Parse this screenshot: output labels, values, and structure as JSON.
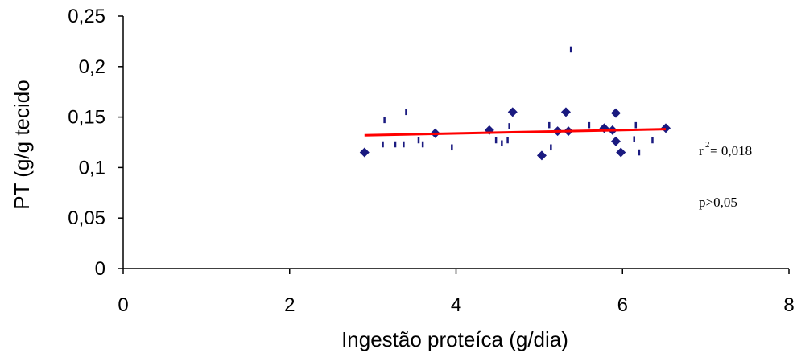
{
  "chart_data": {
    "type": "scatter",
    "title": "",
    "xlabel": "Ingestão proteíca (g/dia)",
    "ylabel": "PT (g/g tecido",
    "xlim": [
      0,
      8
    ],
    "ylim": [
      0,
      0.25
    ],
    "x_ticks": [
      "0",
      "2",
      "4",
      "6",
      "8"
    ],
    "y_ticks": [
      "0",
      "0,05",
      "0,1",
      "0,15",
      "0,2",
      "0,25"
    ],
    "grid": false,
    "legend": "none",
    "colors": {
      "points": "#1a1a80",
      "regression": "#ff0000",
      "error_bars": "#1a1a80"
    },
    "series": [
      {
        "values": [
          {
            "x": 2.9,
            "y": 0.115
          },
          {
            "x": 3.75,
            "y": 0.134
          },
          {
            "x": 4.4,
            "y": 0.137
          },
          {
            "x": 4.68,
            "y": 0.155
          },
          {
            "x": 5.03,
            "y": 0.112
          },
          {
            "x": 5.22,
            "y": 0.136
          },
          {
            "x": 5.32,
            "y": 0.155
          },
          {
            "x": 5.35,
            "y": 0.136
          },
          {
            "x": 5.78,
            "y": 0.139
          },
          {
            "x": 5.88,
            "y": 0.137
          },
          {
            "x": 5.92,
            "y": 0.154
          },
          {
            "x": 5.92,
            "y": 0.126
          },
          {
            "x": 5.98,
            "y": 0.115
          },
          {
            "x": 6.52,
            "y": 0.139
          }
        ]
      }
    ],
    "error_bars": [
      {
        "x": 3.12,
        "y_low": 0.12,
        "y_high": 0.126
      },
      {
        "x": 3.14,
        "y_low": 0.144,
        "y_high": 0.15
      },
      {
        "x": 3.27,
        "y_low": 0.12,
        "y_high": 0.126
      },
      {
        "x": 3.37,
        "y_low": 0.12,
        "y_high": 0.126
      },
      {
        "x": 3.4,
        "y_low": 0.152,
        "y_high": 0.158
      },
      {
        "x": 3.55,
        "y_low": 0.124,
        "y_high": 0.13
      },
      {
        "x": 3.6,
        "y_low": 0.12,
        "y_high": 0.126
      },
      {
        "x": 3.95,
        "y_low": 0.117,
        "y_high": 0.123
      },
      {
        "x": 4.48,
        "y_low": 0.124,
        "y_high": 0.13
      },
      {
        "x": 4.55,
        "y_low": 0.121,
        "y_high": 0.127
      },
      {
        "x": 4.62,
        "y_low": 0.124,
        "y_high": 0.13
      },
      {
        "x": 4.64,
        "y_low": 0.138,
        "y_high": 0.144
      },
      {
        "x": 5.12,
        "y_low": 0.139,
        "y_high": 0.145
      },
      {
        "x": 5.14,
        "y_low": 0.117,
        "y_high": 0.123
      },
      {
        "x": 5.38,
        "y_low": 0.214,
        "y_high": 0.22
      },
      {
        "x": 5.6,
        "y_low": 0.139,
        "y_high": 0.145
      },
      {
        "x": 6.14,
        "y_low": 0.125,
        "y_high": 0.131
      },
      {
        "x": 6.16,
        "y_low": 0.139,
        "y_high": 0.145
      },
      {
        "x": 6.2,
        "y_low": 0.112,
        "y_high": 0.118
      },
      {
        "x": 6.36,
        "y_low": 0.124,
        "y_high": 0.13
      }
    ],
    "regression": {
      "x": [
        2.9,
        6.52
      ],
      "y": [
        0.132,
        0.138
      ]
    },
    "annotations": [
      {
        "base": "r",
        "sup": "2",
        "text": "= 0,018"
      },
      {
        "text": "p>0,05"
      }
    ]
  }
}
